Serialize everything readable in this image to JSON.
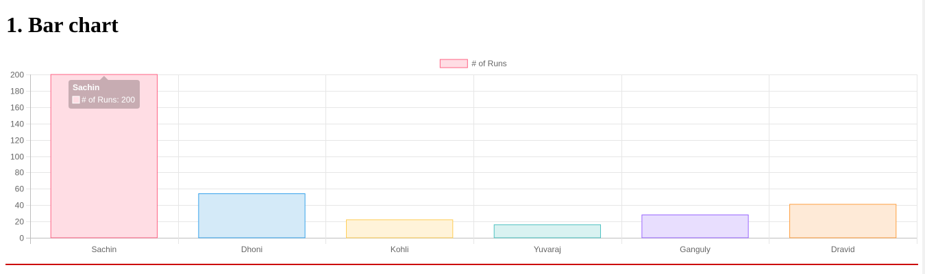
{
  "page": {
    "title": "1. Bar chart"
  },
  "chart_data": {
    "type": "bar",
    "categories": [
      "Sachin",
      "Dhoni",
      "Kohli",
      "Yuvaraj",
      "Ganguly",
      "Dravid"
    ],
    "series": [
      {
        "name": "# of Runs",
        "values": [
          200,
          54,
          22,
          16,
          28,
          41
        ]
      }
    ],
    "ylim": [
      0,
      200
    ],
    "yticks": [
      0,
      20,
      40,
      60,
      80,
      100,
      120,
      140,
      160,
      180,
      200
    ],
    "grid": true,
    "legend_position": "top",
    "bar_fill_colors": [
      "#ffdde4",
      "#d4eaf8",
      "#fff3d9",
      "#d9f2f1",
      "#e8defe",
      "#feead7"
    ],
    "bar_border_colors": [
      "#ff6384",
      "#36a2eb",
      "#ffce56",
      "#4bc0c0",
      "#9966ff",
      "#ff9f40"
    ],
    "tooltip": {
      "title": "Sachin",
      "label": "# of Runs: 200"
    }
  }
}
